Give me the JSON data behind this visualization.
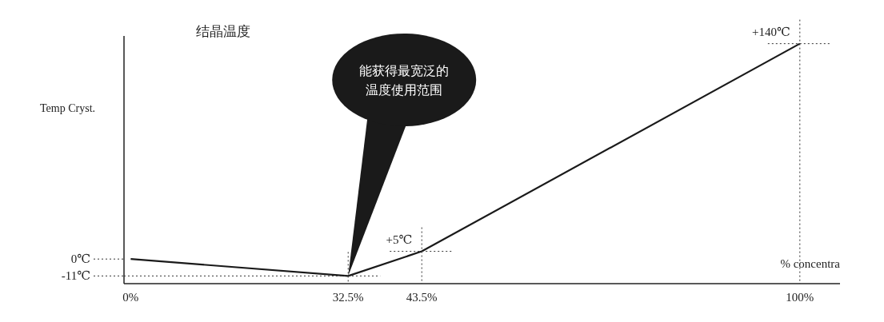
{
  "chart_data": {
    "type": "line",
    "title": "结晶温度",
    "xlabel": "% concentra",
    "ylabel": "Temp Cryst.",
    "x": [
      0,
      32.5,
      43.5,
      100
    ],
    "values": [
      0,
      -11,
      5,
      140
    ],
    "color": "#1a1a1a",
    "value_labels": [
      null,
      null,
      "+5℃",
      "+140℃"
    ],
    "xlim": [
      -1,
      106
    ],
    "xticks": [
      {
        "value": 0,
        "label": "0%"
      },
      {
        "value": 32.5,
        "label": "32.5%"
      },
      {
        "value": 43.5,
        "label": "43.5%"
      },
      {
        "value": 100,
        "label": "100%"
      }
    ],
    "ylim": [
      -16,
      145
    ],
    "yticks": [
      {
        "value": 0,
        "label": "0℃"
      },
      {
        "value": -11,
        "label": "-11℃"
      }
    ],
    "annotations": [
      "能获得最宽泛的温度使用范围"
    ],
    "ref_lines": [
      {
        "axis": "y",
        "value": -11,
        "line_style": "dotted"
      },
      {
        "axis": "y",
        "value": 5,
        "line_style": "dotted"
      },
      {
        "axis": "y",
        "value": 140,
        "line_style": "dotted"
      },
      {
        "axis": "x",
        "value": 32.5,
        "line_style": "dotted"
      },
      {
        "axis": "x",
        "value": 43.5,
        "line_style": "dotted"
      },
      {
        "axis": "x",
        "value": 100,
        "line_style": "dotted"
      }
    ],
    "grid": false,
    "marker": "none",
    "line_style": "solid"
  }
}
